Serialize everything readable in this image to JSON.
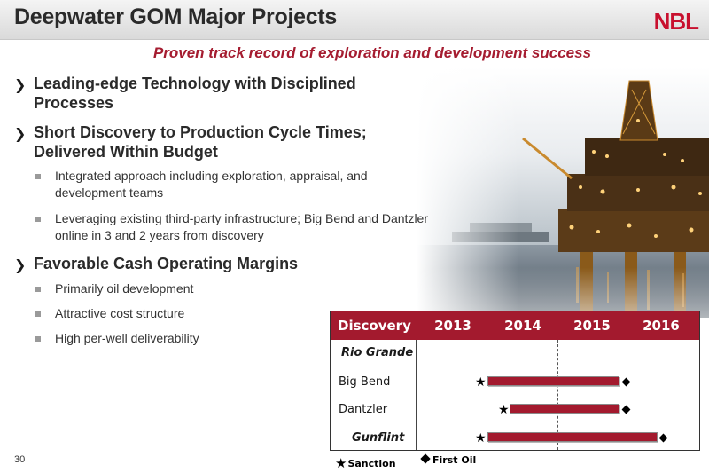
{
  "header": {
    "title": "Deepwater GOM Major Projects",
    "logo": "NBL",
    "subtitle": "Proven track record of exploration and development success"
  },
  "bullets": {
    "b1": "Leading-edge Technology with Disciplined Processes",
    "b2": "Short Discovery to Production Cycle Times; Delivered Within Budget",
    "b2_subs": [
      "Integrated approach including exploration, appraisal, and development teams",
      "Leveraging existing third-party infrastructure; Big Bend and Dantzler online in 3 and 2 years from discovery"
    ],
    "b3": "Favorable Cash Operating Margins",
    "b3_subs": [
      "Primarily oil development",
      "Attractive cost structure",
      "High per-well deliverability"
    ]
  },
  "gantt": {
    "header": [
      "Discovery",
      "2013",
      "2014",
      "2015",
      "2016"
    ],
    "rows": [
      {
        "name": "Rio Grande",
        "emphasis": true
      },
      {
        "name": "Big Bend",
        "emphasis": false
      },
      {
        "name": "Dantzler",
        "emphasis": false
      },
      {
        "name": "Gunflint",
        "emphasis": true
      }
    ],
    "legend": {
      "sanction": "Sanction",
      "first_oil": "First Oil"
    },
    "colors": {
      "header_bg": "#a31a2e",
      "bar": "#a31a2e"
    }
  },
  "page_number": "30",
  "colors": {
    "accent": "#a51c30",
    "logo": "#c8102e"
  }
}
